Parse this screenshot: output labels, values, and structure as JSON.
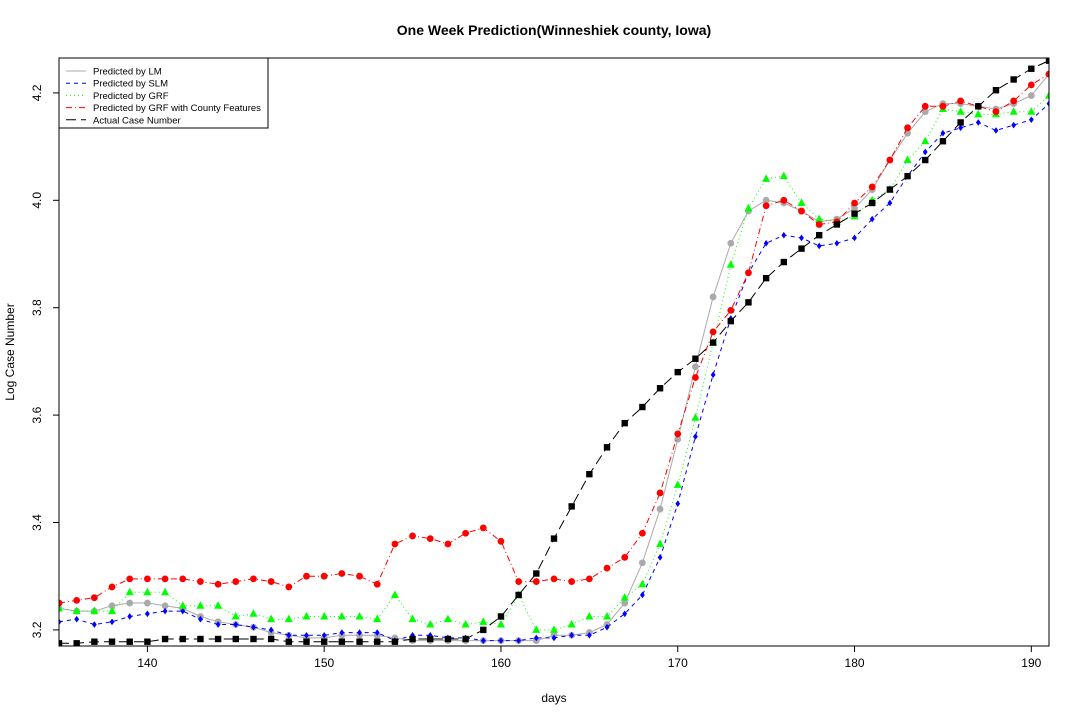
{
  "chart_data": {
    "type": "line",
    "title": "One Week Prediction(Winneshiek county, Iowa)",
    "xlabel": "days",
    "ylabel": "Log Case Number",
    "xlim": [
      135,
      191
    ],
    "ylim": [
      3.17,
      4.265
    ],
    "xticks": [
      "140",
      "150",
      "160",
      "170",
      "180",
      "190"
    ],
    "yticks": [
      "3.2",
      "3.4",
      "3.6",
      "3.8",
      "4.0",
      "4.2"
    ],
    "grid": false,
    "legend_position": "top-left",
    "x": [
      135,
      136,
      137,
      138,
      139,
      140,
      141,
      142,
      143,
      144,
      145,
      146,
      147,
      148,
      149,
      150,
      151,
      152,
      153,
      154,
      155,
      156,
      157,
      158,
      159,
      160,
      161,
      162,
      163,
      164,
      165,
      166,
      167,
      168,
      169,
      170,
      171,
      172,
      173,
      174,
      175,
      176,
      177,
      178,
      179,
      180,
      181,
      182,
      183,
      184,
      185,
      186,
      187,
      188,
      189,
      190,
      191
    ],
    "series": [
      {
        "name": "Predicted by LM",
        "color": "#aaaaaa",
        "marker": "circle",
        "dash": "",
        "values": [
          3.24,
          3.235,
          3.235,
          3.245,
          3.25,
          3.25,
          3.245,
          3.24,
          3.225,
          3.215,
          3.21,
          3.205,
          3.195,
          3.19,
          3.185,
          3.185,
          3.19,
          3.19,
          3.19,
          3.185,
          3.18,
          3.18,
          3.18,
          3.18,
          3.18,
          3.18,
          3.18,
          3.18,
          3.19,
          3.19,
          3.195,
          3.21,
          3.25,
          3.325,
          3.425,
          3.555,
          3.69,
          3.82,
          3.92,
          3.98,
          4.0,
          3.995,
          3.98,
          3.96,
          3.965,
          3.985,
          4.02,
          4.075,
          4.125,
          4.165,
          4.18,
          4.18,
          4.175,
          4.17,
          4.18,
          4.195,
          4.235
        ]
      },
      {
        "name": "Predicted by SLM",
        "color": "#0000ff",
        "marker": "diamond",
        "dash": "4,4",
        "values": [
          3.215,
          3.22,
          3.21,
          3.215,
          3.225,
          3.23,
          3.235,
          3.235,
          3.22,
          3.21,
          3.21,
          3.205,
          3.2,
          3.19,
          3.19,
          3.19,
          3.195,
          3.195,
          3.195,
          3.18,
          3.19,
          3.19,
          3.185,
          3.185,
          3.18,
          3.18,
          3.18,
          3.185,
          3.185,
          3.19,
          3.19,
          3.205,
          3.23,
          3.265,
          3.335,
          3.435,
          3.56,
          3.675,
          3.78,
          3.865,
          3.92,
          3.935,
          3.93,
          3.915,
          3.92,
          3.93,
          3.965,
          3.995,
          4.045,
          4.09,
          4.125,
          4.135,
          4.145,
          4.13,
          4.14,
          4.15,
          4.18
        ]
      },
      {
        "name": "Predicted by GRF",
        "color": "#00ff00",
        "marker": "triangle",
        "dash": "1,3",
        "values": [
          3.24,
          3.235,
          3.235,
          3.235,
          3.27,
          3.27,
          3.27,
          3.245,
          3.245,
          3.245,
          3.225,
          3.23,
          3.22,
          3.22,
          3.225,
          3.225,
          3.225,
          3.225,
          3.22,
          3.265,
          3.22,
          3.21,
          3.22,
          3.21,
          3.215,
          3.21,
          3.265,
          3.2,
          3.2,
          3.21,
          3.225,
          3.225,
          3.26,
          3.285,
          3.36,
          3.47,
          3.595,
          3.735,
          3.88,
          3.985,
          4.04,
          4.045,
          3.995,
          3.965,
          3.96,
          3.97,
          4.0,
          4.02,
          4.075,
          4.11,
          4.17,
          4.165,
          4.16,
          4.16,
          4.165,
          4.165,
          4.195
        ]
      },
      {
        "name": "Predicted by GRF with County Features",
        "color": "#ff0000",
        "marker": "circle",
        "dash": "6,3,1,3",
        "values": [
          3.25,
          3.255,
          3.26,
          3.28,
          3.295,
          3.295,
          3.295,
          3.295,
          3.29,
          3.285,
          3.29,
          3.295,
          3.29,
          3.28,
          3.3,
          3.3,
          3.305,
          3.3,
          3.285,
          3.36,
          3.375,
          3.37,
          3.36,
          3.38,
          3.39,
          3.365,
          3.29,
          3.29,
          3.295,
          3.29,
          3.295,
          3.315,
          3.335,
          3.38,
          3.455,
          3.565,
          3.67,
          3.755,
          3.795,
          3.865,
          3.99,
          4.0,
          3.98,
          3.955,
          3.96,
          3.995,
          4.025,
          4.075,
          4.135,
          4.175,
          4.175,
          4.185,
          4.175,
          4.165,
          4.185,
          4.215,
          4.235
        ]
      },
      {
        "name": "Actual Case Number",
        "color": "#000000",
        "marker": "square",
        "dash": "10,5",
        "values": [
          3.175,
          3.175,
          3.178,
          3.178,
          3.178,
          3.178,
          3.183,
          3.183,
          3.183,
          3.183,
          3.183,
          3.183,
          3.183,
          3.178,
          3.178,
          3.178,
          3.178,
          3.178,
          3.178,
          3.178,
          3.183,
          3.183,
          3.183,
          3.183,
          3.2,
          3.225,
          3.265,
          3.305,
          3.37,
          3.43,
          3.49,
          3.54,
          3.585,
          3.615,
          3.65,
          3.68,
          3.705,
          3.735,
          3.775,
          3.81,
          3.855,
          3.885,
          3.91,
          3.935,
          3.955,
          3.975,
          3.995,
          4.02,
          4.045,
          4.075,
          4.11,
          4.145,
          4.175,
          4.205,
          4.225,
          4.245,
          4.26
        ]
      }
    ]
  }
}
